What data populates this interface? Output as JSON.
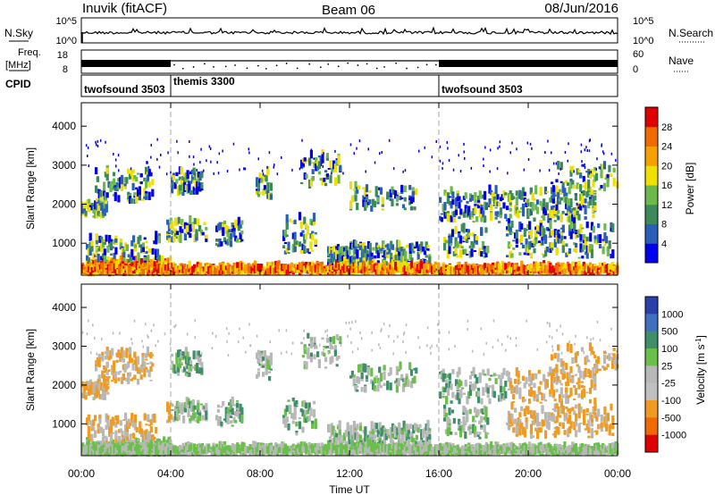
{
  "header": {
    "title": "Inuvik (fitACF)",
    "beam": "Beam 06",
    "date": "08/Jun/2016"
  },
  "top_panels": {
    "nsky_label": "N.Sky",
    "nsky_ticks": [
      "10^5",
      "10^0"
    ],
    "nsearch_label": "N.Search",
    "nsearch_ticks": [
      "10^5",
      "10^0"
    ],
    "freq_label": "Freq.",
    "freq_unit": "[MHz]",
    "freq_ticks": [
      "18",
      "8"
    ],
    "nave_label": "Nave",
    "nave_ticks": [
      "60",
      "0"
    ],
    "cpid_label": "CPID",
    "cpid_segments": [
      {
        "name": "twofsound 3503",
        "start_h": 0,
        "end_h": 4
      },
      {
        "name": "themis 3300",
        "start_h": 4,
        "end_h": 16
      },
      {
        "name": "twofsound 3503",
        "start_h": 16,
        "end_h": 24
      }
    ]
  },
  "chart_data": [
    {
      "type": "heatmap",
      "panel": "power",
      "ylabel": "Slant Range [km]",
      "ylim": [
        180,
        4600
      ],
      "yticks": [
        "1000",
        "2000",
        "3000",
        "4000"
      ],
      "colorbar_label": "Power [dB]",
      "colorbar_ticks": [
        "4",
        "8",
        "12",
        "16",
        "20",
        "24",
        "28"
      ],
      "colors": [
        "#0000ee",
        "#2a5fb8",
        "#3c8a5a",
        "#6cb84a",
        "#f0e000",
        "#f5a000",
        "#ef6a00",
        "#e00000"
      ]
    },
    {
      "type": "heatmap",
      "panel": "velocity",
      "ylabel": "Slant Range [km]",
      "ylim": [
        180,
        4600
      ],
      "yticks": [
        "1000",
        "2000",
        "3000",
        "4000"
      ],
      "colorbar_label": "Velocity [m s^-1]",
      "colorbar_ticks": [
        "1000",
        "500",
        "100",
        "25",
        "-25",
        "-100",
        "-500",
        "-1000"
      ],
      "colors": [
        "#2b3fa8",
        "#3f6fbf",
        "#3e8e6a",
        "#6abf4b",
        "#b8b8b8",
        "#c0c0c0",
        "#f09a20",
        "#ef6a00",
        "#e00000"
      ]
    }
  ],
  "x_axis": {
    "ticks": [
      "00:00",
      "04:00",
      "08:00",
      "12:00",
      "16:00",
      "20:00",
      "00:00"
    ],
    "label": "Time UT"
  }
}
